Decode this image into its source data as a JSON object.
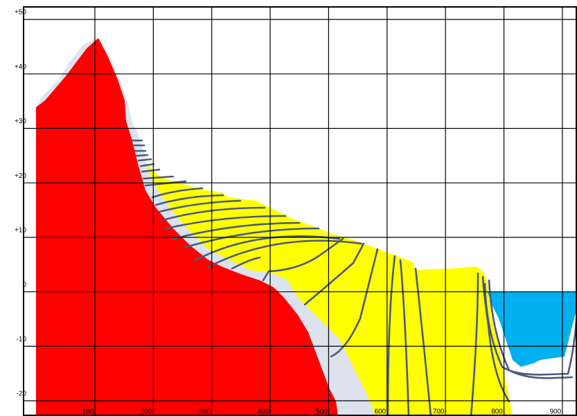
{
  "chart_data": {
    "type": "cross-section",
    "xlim": [
      -22,
      925
    ],
    "ylim": [
      -22.8,
      52.3
    ],
    "xticks": [
      100,
      200,
      300,
      400,
      500,
      600,
      700,
      800,
      900
    ],
    "yticks": [
      {
        "value": 50,
        "label": "+50"
      },
      {
        "value": 40,
        "label": "+40"
      },
      {
        "value": 30,
        "label": "+30"
      },
      {
        "value": 20,
        "label": "+20"
      },
      {
        "value": 10,
        "label": "+10"
      },
      0,
      -10,
      -20
    ],
    "grid": true
  }
}
